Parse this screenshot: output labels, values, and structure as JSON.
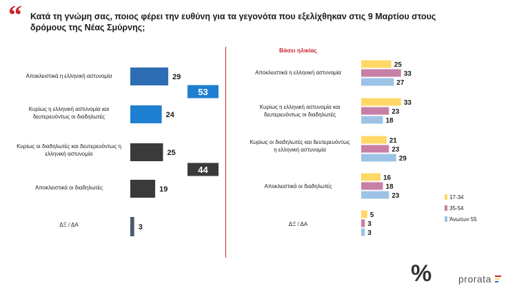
{
  "title": "Κατά τη γνώμη σας, ποιος φέρει την ευθύνη για τα γεγονότα που εξελίχθηκαν στις 9 Μαρτίου στους δρόμους της Νέας Σμύρνης;",
  "quote_mark": "“",
  "logo": {
    "symbol": "%",
    "text": "prorata"
  },
  "colors": {
    "accent": "#c8232c",
    "blue_dark": "#2e6db3",
    "blue": "#1f7fd0",
    "dark": "#3a3a3a",
    "slate": "#4a5a70",
    "yellow": "#ffd866",
    "mauve": "#c87fa5",
    "lightblue": "#9cc3e6"
  },
  "chart_data": [
    {
      "type": "bar",
      "orientation": "horizontal",
      "categories": [
        "Αποκλειστικά η ελληνική αστυνομία",
        "Κυρίως η ελληνική αστυνομία και δευτερευόντως οι διαδηλωτές",
        "Κυρίως οι διαδηλωτές και δευτερευόντως η ελληνική αστυνομία",
        "Αποκλειστικά οι διαδηλωτές",
        "ΔΞ / ΔΑ"
      ],
      "values": [
        29,
        24,
        25,
        19,
        3
      ],
      "totals": [
        {
          "label": "53",
          "value": 53,
          "groups": [
            0,
            1
          ]
        },
        {
          "label": "44",
          "value": 44,
          "groups": [
            2,
            3
          ]
        }
      ],
      "xlim": [
        0,
        100
      ]
    },
    {
      "type": "bar",
      "orientation": "horizontal",
      "subtitle": "Βάσει ηλικίας",
      "categories": [
        "Αποκλειστικά η ελληνική αστυνομία",
        "Κυρίως η ελληνική αστυνομία και δευτερευόντως οι διαδηλωτές",
        "Κυρίως οι διαδηλωτές και δευτερευόντως η ελληνική αστυνομία",
        "Αποκλειστικά οι διαδηλωτές",
        "ΔΞ / ΔΑ"
      ],
      "series": [
        {
          "name": "17-34",
          "color": "#ffd866",
          "values": [
            25,
            33,
            21,
            16,
            5
          ]
        },
        {
          "name": "35-54",
          "color": "#c87fa5",
          "values": [
            33,
            23,
            23,
            18,
            3
          ]
        },
        {
          "name": "Άνωτων 55",
          "color": "#9cc3e6",
          "values": [
            27,
            18,
            29,
            23,
            3
          ]
        }
      ],
      "legend": "bottom-right",
      "xlim": [
        0,
        100
      ]
    }
  ]
}
